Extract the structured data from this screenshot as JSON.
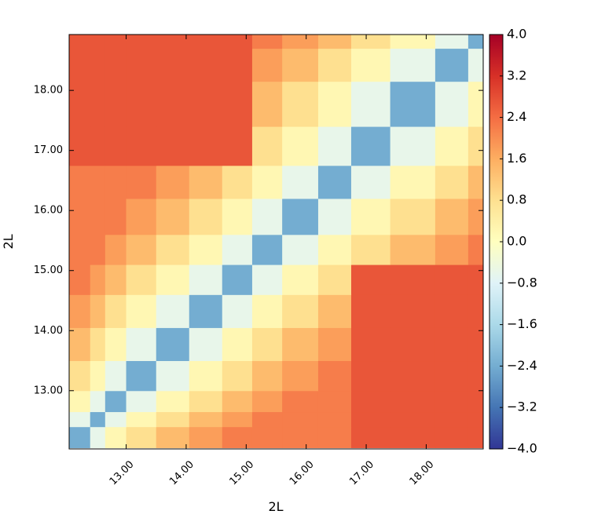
{
  "chart_data": {
    "type": "heatmap",
    "x_label": "2L",
    "y_label": "2L",
    "bins": [
      12.05,
      12.4,
      12.65,
      13.0,
      13.5,
      14.05,
      14.6,
      15.1,
      15.6,
      16.2,
      16.75,
      17.4,
      18.15,
      18.7,
      18.95
    ],
    "values": [
      [
        -2.4,
        -0.6,
        0.2,
        0.8,
        1.4,
        1.8,
        2.2,
        2.2,
        2.2,
        2.2,
        2.7,
        2.7,
        2.7,
        2.7
      ],
      [
        -0.6,
        -2.4,
        -0.6,
        0.2,
        0.8,
        1.4,
        1.8,
        2.2,
        2.2,
        2.2,
        2.7,
        2.7,
        2.7,
        2.7
      ],
      [
        0.2,
        -0.6,
        -2.4,
        -0.6,
        0.2,
        0.8,
        1.4,
        1.8,
        2.2,
        2.2,
        2.7,
        2.7,
        2.7,
        2.7
      ],
      [
        0.8,
        0.2,
        -0.6,
        -2.4,
        -0.6,
        0.2,
        0.8,
        1.4,
        1.8,
        2.2,
        2.7,
        2.7,
        2.7,
        2.7
      ],
      [
        1.4,
        0.8,
        0.2,
        -0.6,
        -2.4,
        -0.6,
        0.2,
        0.8,
        1.4,
        1.8,
        2.7,
        2.7,
        2.7,
        2.7
      ],
      [
        1.8,
        1.4,
        0.8,
        0.2,
        -0.6,
        -2.4,
        -0.6,
        0.2,
        0.8,
        1.4,
        2.7,
        2.7,
        2.7,
        2.7
      ],
      [
        2.2,
        1.8,
        1.4,
        0.8,
        0.2,
        -0.6,
        -2.4,
        -0.6,
        0.2,
        0.8,
        2.7,
        2.7,
        2.7,
        2.7
      ],
      [
        2.2,
        2.2,
        1.8,
        1.4,
        0.8,
        0.2,
        -0.6,
        -2.4,
        -0.6,
        0.2,
        0.8,
        1.4,
        1.8,
        2.2
      ],
      [
        2.2,
        2.2,
        2.2,
        1.8,
        1.4,
        0.8,
        0.2,
        -0.6,
        -2.4,
        -0.6,
        0.2,
        0.8,
        1.4,
        1.8
      ],
      [
        2.2,
        2.2,
        2.2,
        2.2,
        1.8,
        1.4,
        0.8,
        0.2,
        -0.6,
        -2.4,
        -0.6,
        0.2,
        0.8,
        1.4
      ],
      [
        2.7,
        2.7,
        2.7,
        2.7,
        2.7,
        2.7,
        2.7,
        0.8,
        0.2,
        -0.6,
        -2.4,
        -0.6,
        0.2,
        0.8
      ],
      [
        2.7,
        2.7,
        2.7,
        2.7,
        2.7,
        2.7,
        2.7,
        1.4,
        0.8,
        0.2,
        -0.6,
        -2.4,
        -0.6,
        0.2
      ],
      [
        2.7,
        2.7,
        2.7,
        2.7,
        2.7,
        2.7,
        2.7,
        1.8,
        1.4,
        0.8,
        0.2,
        -0.6,
        -2.4,
        -0.6
      ],
      [
        2.7,
        2.7,
        2.7,
        2.7,
        2.7,
        2.7,
        2.7,
        2.2,
        1.8,
        1.4,
        0.8,
        0.2,
        -0.6,
        -2.4
      ]
    ],
    "xlim": [
      12.05,
      18.95
    ],
    "ylim": [
      12.03,
      18.93
    ],
    "xticks": [
      {
        "value": 13,
        "label": "13.00"
      },
      {
        "value": 14,
        "label": "14.00"
      },
      {
        "value": 15,
        "label": "15.00"
      },
      {
        "value": 16,
        "label": "16.00"
      },
      {
        "value": 17,
        "label": "17.00"
      },
      {
        "value": 18,
        "label": "18.00"
      }
    ],
    "yticks": [
      {
        "value": 13,
        "label": "13.00"
      },
      {
        "value": 14,
        "label": "14.00"
      },
      {
        "value": 15,
        "label": "15.00"
      },
      {
        "value": 16,
        "label": "16.00"
      },
      {
        "value": 17,
        "label": "17.00"
      },
      {
        "value": 18,
        "label": "18.00"
      }
    ],
    "colorbar_lim": [
      -4,
      4
    ],
    "colorbar_ticks": [
      {
        "value": 4,
        "label": "4.0"
      },
      {
        "value": 3.2,
        "label": "3.2"
      },
      {
        "value": 2.4,
        "label": "2.4"
      },
      {
        "value": 1.6,
        "label": "1.6"
      },
      {
        "value": 0.8,
        "label": "0.8"
      },
      {
        "value": 0,
        "label": "0.0"
      },
      {
        "value": -0.8,
        "label": "−0.8"
      },
      {
        "value": -1.6,
        "label": "−1.6"
      },
      {
        "value": -2.4,
        "label": "−2.4"
      },
      {
        "value": -3.2,
        "label": "−3.2"
      },
      {
        "value": -4,
        "label": "−4.0"
      }
    ],
    "colors": [
      "#313695",
      "#4575b4",
      "#74add1",
      "#abd9e9",
      "#e0f3f8",
      "#ffffbf",
      "#fee090",
      "#fdae61",
      "#f46d43",
      "#d73027",
      "#a50026"
    ]
  }
}
